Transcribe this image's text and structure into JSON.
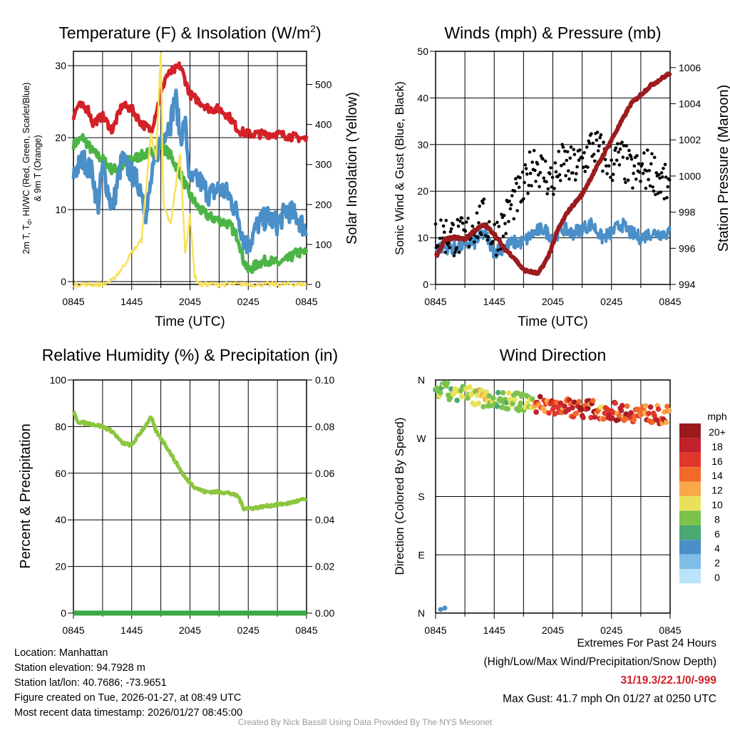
{
  "chart_data": [
    {
      "type": "line",
      "title": "Temperature (F) & Insolation (W/m",
      "title_sup": "2",
      "title_end": ")",
      "ylabel_left_lines": [
        "2m T, T",
        "d",
        ", HI/WC (Red, Green, Scarlet/Blue)",
        "& 9m T (Orange)"
      ],
      "ylabel_right": "Solar Insolation (Yellow)",
      "xlabel": "Time (UTC)",
      "xticks": [
        "0845",
        "1445",
        "2045",
        "0245",
        "0845"
      ],
      "ylim": [
        -0.4,
        32
      ],
      "ylim_right": [
        0,
        583
      ],
      "yticks": [
        "0",
        "10",
        "20",
        "30"
      ],
      "yticks_right": [
        "0",
        "100",
        "200",
        "300",
        "400",
        "500"
      ],
      "series": [
        {
          "name": "2m T",
          "color": "#d42027",
          "x": [
            0,
            0.5,
            1.5,
            2,
            3,
            4,
            5,
            6,
            7,
            8,
            9,
            9.5,
            10,
            11,
            11.5,
            12,
            14,
            15,
            16,
            17,
            18,
            21,
            24
          ],
          "y": [
            23,
            24.5,
            24,
            22,
            23,
            21,
            24.5,
            24,
            22,
            21,
            26,
            28.5,
            29,
            30,
            28,
            26,
            24,
            24,
            23,
            21,
            20.5,
            20.5,
            19.8
          ]
        },
        {
          "name": "HI/WC",
          "color": "#4a8fc8",
          "x": [
            0,
            1,
            2,
            2.5,
            3,
            4,
            5,
            6,
            7,
            7.5,
            8,
            9,
            10,
            10.5,
            11,
            11.5,
            12,
            13,
            14,
            15,
            16,
            17,
            17.5,
            18,
            19,
            20,
            21,
            22,
            23,
            24
          ],
          "y": [
            15,
            17,
            15,
            10,
            16,
            10,
            17,
            15,
            13,
            9,
            14,
            20,
            22,
            26,
            20,
            22,
            14,
            14,
            12,
            13,
            12,
            9,
            6,
            5,
            8,
            9,
            8,
            10,
            9,
            7
          ]
        },
        {
          "name": "Td",
          "color": "#4cb447",
          "x": [
            0,
            1,
            2,
            3,
            4,
            5,
            6,
            7,
            8,
            9,
            10,
            11,
            12,
            13,
            14,
            15,
            16,
            17,
            17.5,
            18,
            19,
            20,
            21,
            22,
            23,
            24
          ],
          "y": [
            19,
            20,
            18,
            17,
            15.5,
            16,
            17,
            17.5,
            18,
            19,
            17.5,
            15,
            12,
            10,
            9,
            8.5,
            8,
            6,
            3,
            1.5,
            2.5,
            3,
            2.5,
            3,
            4,
            4
          ]
        },
        {
          "name": "Solar",
          "axis": "right",
          "color": "#f7e15a",
          "x": [
            0,
            3,
            4,
            5,
            6,
            7,
            8,
            8.5,
            9,
            9.25,
            10,
            11,
            11.5,
            12,
            12.5,
            13,
            24
          ],
          "y": [
            0,
            0,
            10,
            40,
            80,
            110,
            380,
            310,
            580,
            200,
            150,
            330,
            80,
            170,
            20,
            0,
            0
          ]
        }
      ]
    },
    {
      "type": "line",
      "title": "Winds (mph) & Pressure (mb)",
      "ylabel_left": "Sonic Wind & Gust (Blue, Black)",
      "ylabel_right": "Station Pressure (Maroon)",
      "xlabel": "Time (UTC)",
      "xticks": [
        "0845",
        "1445",
        "2045",
        "0245",
        "0845"
      ],
      "ylim": [
        0,
        50
      ],
      "ylim_right": [
        994,
        1006.9
      ],
      "yticks": [
        "0",
        "10",
        "20",
        "30",
        "40",
        "50"
      ],
      "yticks_right": [
        "994",
        "996",
        "998",
        "1000",
        "1002",
        "1004",
        "1006"
      ],
      "series": [
        {
          "name": "Sonic Wind",
          "color": "#4a8fc8",
          "x": [
            0,
            2,
            4,
            5,
            6,
            7,
            8,
            9,
            10,
            11,
            12,
            13,
            14,
            15,
            16,
            17,
            18,
            19,
            20,
            21,
            22,
            24
          ],
          "y": [
            8,
            8,
            9,
            11,
            7,
            8,
            9,
            9,
            11,
            12,
            10,
            12,
            11,
            12,
            13,
            10,
            11,
            13,
            11,
            10,
            11,
            11
          ]
        },
        {
          "name": "Gust",
          "type": "scatter",
          "color": "#000000",
          "x": [
            0,
            3,
            4,
            5,
            6,
            7,
            8,
            9,
            10,
            11,
            12,
            13,
            14,
            15,
            16,
            17,
            18,
            19,
            20,
            21,
            22,
            24
          ],
          "y": [
            11,
            10,
            13,
            14,
            10,
            13,
            18,
            20,
            27,
            24,
            22,
            26,
            25,
            26,
            30,
            28,
            26,
            27,
            24,
            24,
            25,
            20
          ]
        },
        {
          "name": "Pressure",
          "axis": "right",
          "color": "#9b1b1e",
          "x": [
            0,
            1,
            2,
            3,
            4,
            5,
            6,
            7,
            8,
            9,
            10.5,
            11.5,
            12.5,
            13.5,
            15,
            16.5,
            18,
            19,
            20,
            22,
            24
          ],
          "y": [
            995.5,
            996.5,
            996.6,
            996.5,
            997,
            997.3,
            996.8,
            996,
            995.5,
            994.8,
            994.6,
            995.5,
            997,
            998,
            999,
            1000.5,
            1002,
            1003,
            1004,
            1005,
            1005.7
          ]
        }
      ]
    },
    {
      "type": "line",
      "title": "Relative Humidity (%) & Precipitation (in)",
      "ylabel_left": "Percent & Precipitation",
      "xlabel": "",
      "xticks": [
        "0845",
        "1445",
        "2045",
        "0245",
        "0845"
      ],
      "ylim": [
        0,
        100
      ],
      "ylim_right": [
        0,
        0.1
      ],
      "yticks": [
        "0",
        "20",
        "40",
        "60",
        "80",
        "100"
      ],
      "yticks_right": [
        "0.00",
        "0.02",
        "0.04",
        "0.06",
        "0.08",
        "0.10"
      ],
      "series": [
        {
          "name": "RH",
          "color": "#8cc63f",
          "x": [
            0,
            0.5,
            2,
            3,
            4,
            5,
            6,
            7,
            8,
            8.5,
            9.5,
            10.5,
            11.5,
            12.5,
            13.5,
            15,
            16,
            17,
            17.5,
            18.5,
            20,
            22,
            24
          ],
          "y": [
            86,
            82,
            81,
            80,
            78,
            73,
            72,
            78,
            84,
            78,
            72,
            65,
            58,
            54,
            52,
            52,
            51.5,
            50,
            45,
            45,
            46,
            47,
            49
          ]
        },
        {
          "name": "Precipitation",
          "axis": "right",
          "color": "#3aa845",
          "x": [
            0,
            24
          ],
          "y": [
            0,
            0
          ]
        }
      ]
    },
    {
      "type": "scatter",
      "title": "Wind Direction",
      "ylabel_left": "Direction (Colored By Speed)",
      "xlabel": "",
      "xticks": [
        "0845",
        "1445",
        "2045",
        "0245",
        "0845"
      ],
      "yticks": [
        "N",
        "W",
        "S",
        "E",
        "N"
      ],
      "ylim": [
        0,
        360
      ],
      "direction_x": [
        0,
        6,
        12,
        18,
        24
      ],
      "direction_y": [
        345,
        330,
        320,
        312,
        305
      ],
      "legend": {
        "title": "mph",
        "labels": [
          "20+",
          "18",
          "16",
          "14",
          "12",
          "10",
          "8",
          "6",
          "4",
          "2",
          "0"
        ],
        "colors": [
          "#9a1b1e",
          "#c0212a",
          "#e0362c",
          "#f26a2a",
          "#f9a84a",
          "#e8e25a",
          "#7cc24c",
          "#4aa872",
          "#4a8fc8",
          "#7fbde6",
          "#b8e3f8"
        ]
      }
    }
  ],
  "footer": {
    "left": [
      "Location: Manhattan",
      "Station elevation: 94.7928 m",
      "Station lat/lon: 40.7686; -73.9651",
      "Figure created on Tue, 2026-01-27, at 08:49 UTC",
      "Most recent data timestamp: 2026/01/27 08:45:00"
    ],
    "right_title": "Extremes For Past 24 Hours",
    "right_sub": "(High/Low/Max Wind/Precipitation/Snow Depth)",
    "extremes": "31/19.3/22.1/0/-999",
    "extremes_color": "#d42027",
    "max_gust": "Max Gust: 41.7 mph On 01/27 at 0250 UTC",
    "credit": "Created By Nick Bassill Using Data Provided By The NYS Mesonet"
  }
}
